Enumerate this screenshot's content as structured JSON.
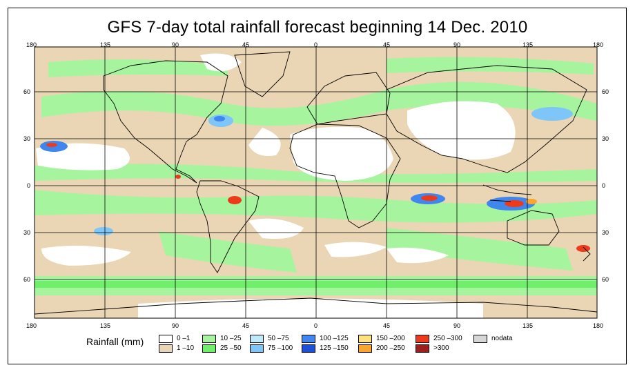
{
  "title": "GFS 7-day total rainfall forecast beginning 14 Dec. 2010",
  "map": {
    "longitude_labels_top": [
      "180",
      "135",
      "90",
      "45",
      "0",
      "45",
      "90",
      "135",
      "180"
    ],
    "longitude_labels_bottom": [
      "180",
      "135",
      "90",
      "45",
      "0",
      "45",
      "90",
      "135",
      "180"
    ],
    "latitude_labels_left": [
      "60",
      "30",
      "0",
      "30",
      "60"
    ],
    "latitude_labels_right": [
      "60",
      "30",
      "0",
      "30",
      "60"
    ]
  },
  "legend": {
    "label": "Rainfall (mm)",
    "items": [
      {
        "text": "0 –1",
        "color": "#ffffff"
      },
      {
        "text": "1 –10",
        "color": "#ead5b4"
      },
      {
        "text": "10 –25",
        "color": "#a6f59e"
      },
      {
        "text": "25 –50",
        "color": "#6ef06a"
      },
      {
        "text": "50 –75",
        "color": "#bdebfb"
      },
      {
        "text": "75 –100",
        "color": "#7ec6f8"
      },
      {
        "text": "100 –125",
        "color": "#3f86ee"
      },
      {
        "text": "125 –150",
        "color": "#1c50d8"
      },
      {
        "text": "150 –200",
        "color": "#fde080"
      },
      {
        "text": "200 –250",
        "color": "#fca52c"
      },
      {
        "text": "250 –300",
        "color": "#ec3a1a"
      },
      {
        "text": ">300",
        "color": "#a11e1e"
      },
      {
        "text": "nodata",
        "color": "#d6d6d6"
      }
    ]
  }
}
